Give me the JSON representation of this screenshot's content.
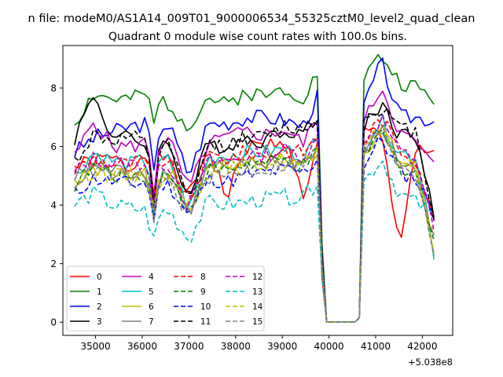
{
  "chart_data": {
    "type": "line",
    "suptitle": "n file: modeM0/AS1A14_009T01_9000006534_55325cztM0_level2_quad_clean",
    "title": "Quadrant 0 module wise count rates with 100.0s bins.",
    "xlabel": "",
    "ylabel": "",
    "x_offset_label": "+5.038e8",
    "xlim": [
      34300,
      42650
    ],
    "ylim": [
      -0.45,
      9.45
    ],
    "x_ticks": [
      35000,
      36000,
      37000,
      38000,
      39000,
      40000,
      41000,
      42000
    ],
    "x_tick_labels": [
      "35000",
      "36000",
      "37000",
      "38000",
      "39000",
      "40000",
      "41000",
      "42000"
    ],
    "y_ticks": [
      0,
      2,
      4,
      6,
      8
    ],
    "y_tick_labels": [
      "0",
      "2",
      "4",
      "6",
      "8"
    ],
    "grid": false,
    "legend": {
      "location": "lower left",
      "columns": 4
    },
    "x": {
      "start": 34550,
      "step": 100,
      "count": 78,
      "gap": {
        "drop_start_index": 52,
        "low_indices": [
          54,
          55,
          56,
          57,
          58,
          59,
          60,
          61
        ],
        "rise_index": 62
      }
    },
    "series": [
      {
        "name": "0",
        "color": "#ff0000",
        "dash": "solid",
        "levels": [
          5.3,
          5.5,
          5.6,
          5.2,
          6.2,
          5.4,
          4.2,
          6.0,
          4.2,
          6.0,
          6.0,
          6.3,
          4.3,
          6.5,
          6.5,
          6.4,
          2.6,
          6.1,
          5.6
        ]
      },
      {
        "name": "1",
        "color": "#008000",
        "dash": "solid",
        "levels": [
          6.8,
          7.8,
          7.6,
          7.6,
          7.9,
          7.4,
          6.7,
          7.7,
          7.4,
          7.9,
          7.7,
          8.0,
          7.7,
          8.7,
          8.4,
          9.1,
          8.2,
          8.0,
          7.6
        ]
      },
      {
        "name": "2",
        "color": "#0000ff",
        "dash": "solid",
        "levels": [
          5.8,
          6.3,
          6.5,
          6.7,
          6.8,
          6.7,
          5.0,
          6.8,
          6.8,
          7.0,
          7.0,
          6.9,
          6.7,
          8.0,
          7.4,
          8.9,
          7.0,
          7.0,
          6.9
        ]
      },
      {
        "name": "3",
        "color": "#000000",
        "dash": "solid",
        "levels": [
          6.3,
          7.8,
          6.3,
          6.3,
          6.0,
          6.1,
          4.2,
          6.1,
          6.0,
          6.3,
          6.2,
          6.6,
          6.5,
          7.0,
          6.7,
          7.5,
          6.4,
          6.4,
          3.5
        ]
      },
      {
        "name": "4",
        "color": "#bf00bf",
        "dash": "solid",
        "levels": [
          5.6,
          6.9,
          6.0,
          6.0,
          6.2,
          6.2,
          4.5,
          6.1,
          6.3,
          6.5,
          6.4,
          6.6,
          6.1,
          7.3,
          6.8,
          8.1,
          6.5,
          6.1,
          5.3
        ]
      },
      {
        "name": "5",
        "color": "#00bfbf",
        "dash": "solid",
        "levels": [
          5.0,
          5.8,
          5.5,
          5.4,
          5.6,
          5.5,
          3.8,
          5.6,
          5.7,
          5.8,
          5.8,
          5.9,
          5.7,
          6.3,
          6.1,
          6.9,
          5.8,
          5.7,
          2.4
        ]
      },
      {
        "name": "6",
        "color": "#bfbf00",
        "dash": "solid",
        "levels": [
          4.8,
          5.3,
          5.1,
          5.1,
          5.2,
          5.1,
          3.9,
          5.3,
          5.3,
          5.5,
          5.5,
          5.6,
          5.4,
          6.0,
          5.8,
          6.7,
          5.5,
          5.3,
          2.5
        ]
      },
      {
        "name": "7",
        "color": "#808080",
        "dash": "solid",
        "levels": [
          4.9,
          5.4,
          5.2,
          5.1,
          5.2,
          5.1,
          3.7,
          5.3,
          5.3,
          5.4,
          5.4,
          5.6,
          5.4,
          6.0,
          5.8,
          6.6,
          5.5,
          5.2,
          3.0
        ]
      },
      {
        "name": "8",
        "color": "#ff0000",
        "dash": "dashed",
        "levels": [
          5.2,
          5.6,
          5.4,
          5.4,
          5.6,
          5.5,
          4.1,
          5.7,
          5.6,
          5.8,
          5.7,
          5.9,
          5.8,
          6.5,
          6.2,
          7.0,
          5.9,
          5.6,
          3.4
        ]
      },
      {
        "name": "9",
        "color": "#008000",
        "dash": "dashed",
        "levels": [
          4.7,
          5.3,
          5.0,
          5.0,
          5.1,
          5.0,
          3.8,
          5.2,
          5.2,
          5.4,
          5.4,
          5.5,
          5.3,
          5.9,
          5.7,
          6.5,
          5.3,
          5.1,
          2.6
        ]
      },
      {
        "name": "10",
        "color": "#0000ff",
        "dash": "dashed",
        "levels": [
          4.4,
          4.9,
          4.8,
          4.7,
          4.8,
          4.7,
          3.6,
          4.9,
          4.8,
          5.0,
          5.1,
          5.2,
          5.1,
          5.7,
          5.4,
          6.3,
          5.1,
          4.9,
          3.7
        ]
      },
      {
        "name": "11",
        "color": "#000000",
        "dash": "dashed",
        "levels": [
          5.5,
          6.4,
          6.2,
          6.3,
          6.0,
          6.0,
          4.0,
          6.0,
          6.1,
          6.3,
          6.3,
          6.7,
          6.6,
          7.1,
          6.9,
          7.4,
          6.6,
          6.5,
          3.6
        ]
      },
      {
        "name": "12",
        "color": "#bf00bf",
        "dash": "dashed",
        "levels": [
          5.1,
          5.6,
          5.4,
          5.4,
          5.5,
          5.4,
          3.9,
          5.5,
          5.5,
          5.7,
          5.7,
          5.9,
          5.7,
          6.3,
          6.1,
          7.0,
          5.8,
          5.6,
          3.1
        ]
      },
      {
        "name": "13",
        "color": "#00bfbf",
        "dash": "dashed",
        "levels": [
          4.0,
          4.4,
          4.0,
          3.9,
          3.8,
          3.8,
          2.8,
          4.1,
          4.0,
          4.1,
          4.2,
          4.3,
          4.2,
          5.0,
          4.8,
          5.6,
          4.4,
          4.1,
          3.6
        ]
      },
      {
        "name": "14",
        "color": "#bfbf00",
        "dash": "dashed",
        "levels": [
          4.7,
          5.2,
          5.0,
          5.0,
          5.1,
          5.0,
          3.8,
          5.2,
          5.2,
          5.4,
          5.4,
          5.5,
          5.3,
          6.0,
          5.8,
          6.7,
          5.4,
          5.2,
          2.8
        ]
      },
      {
        "name": "15",
        "color": "#808080",
        "dash": "dashed",
        "levels": [
          4.8,
          5.2,
          5.0,
          4.9,
          4.9,
          4.8,
          3.6,
          5.0,
          5.0,
          5.2,
          5.2,
          5.4,
          5.3,
          5.9,
          5.7,
          6.6,
          5.4,
          5.1,
          2.5
        ]
      }
    ]
  }
}
